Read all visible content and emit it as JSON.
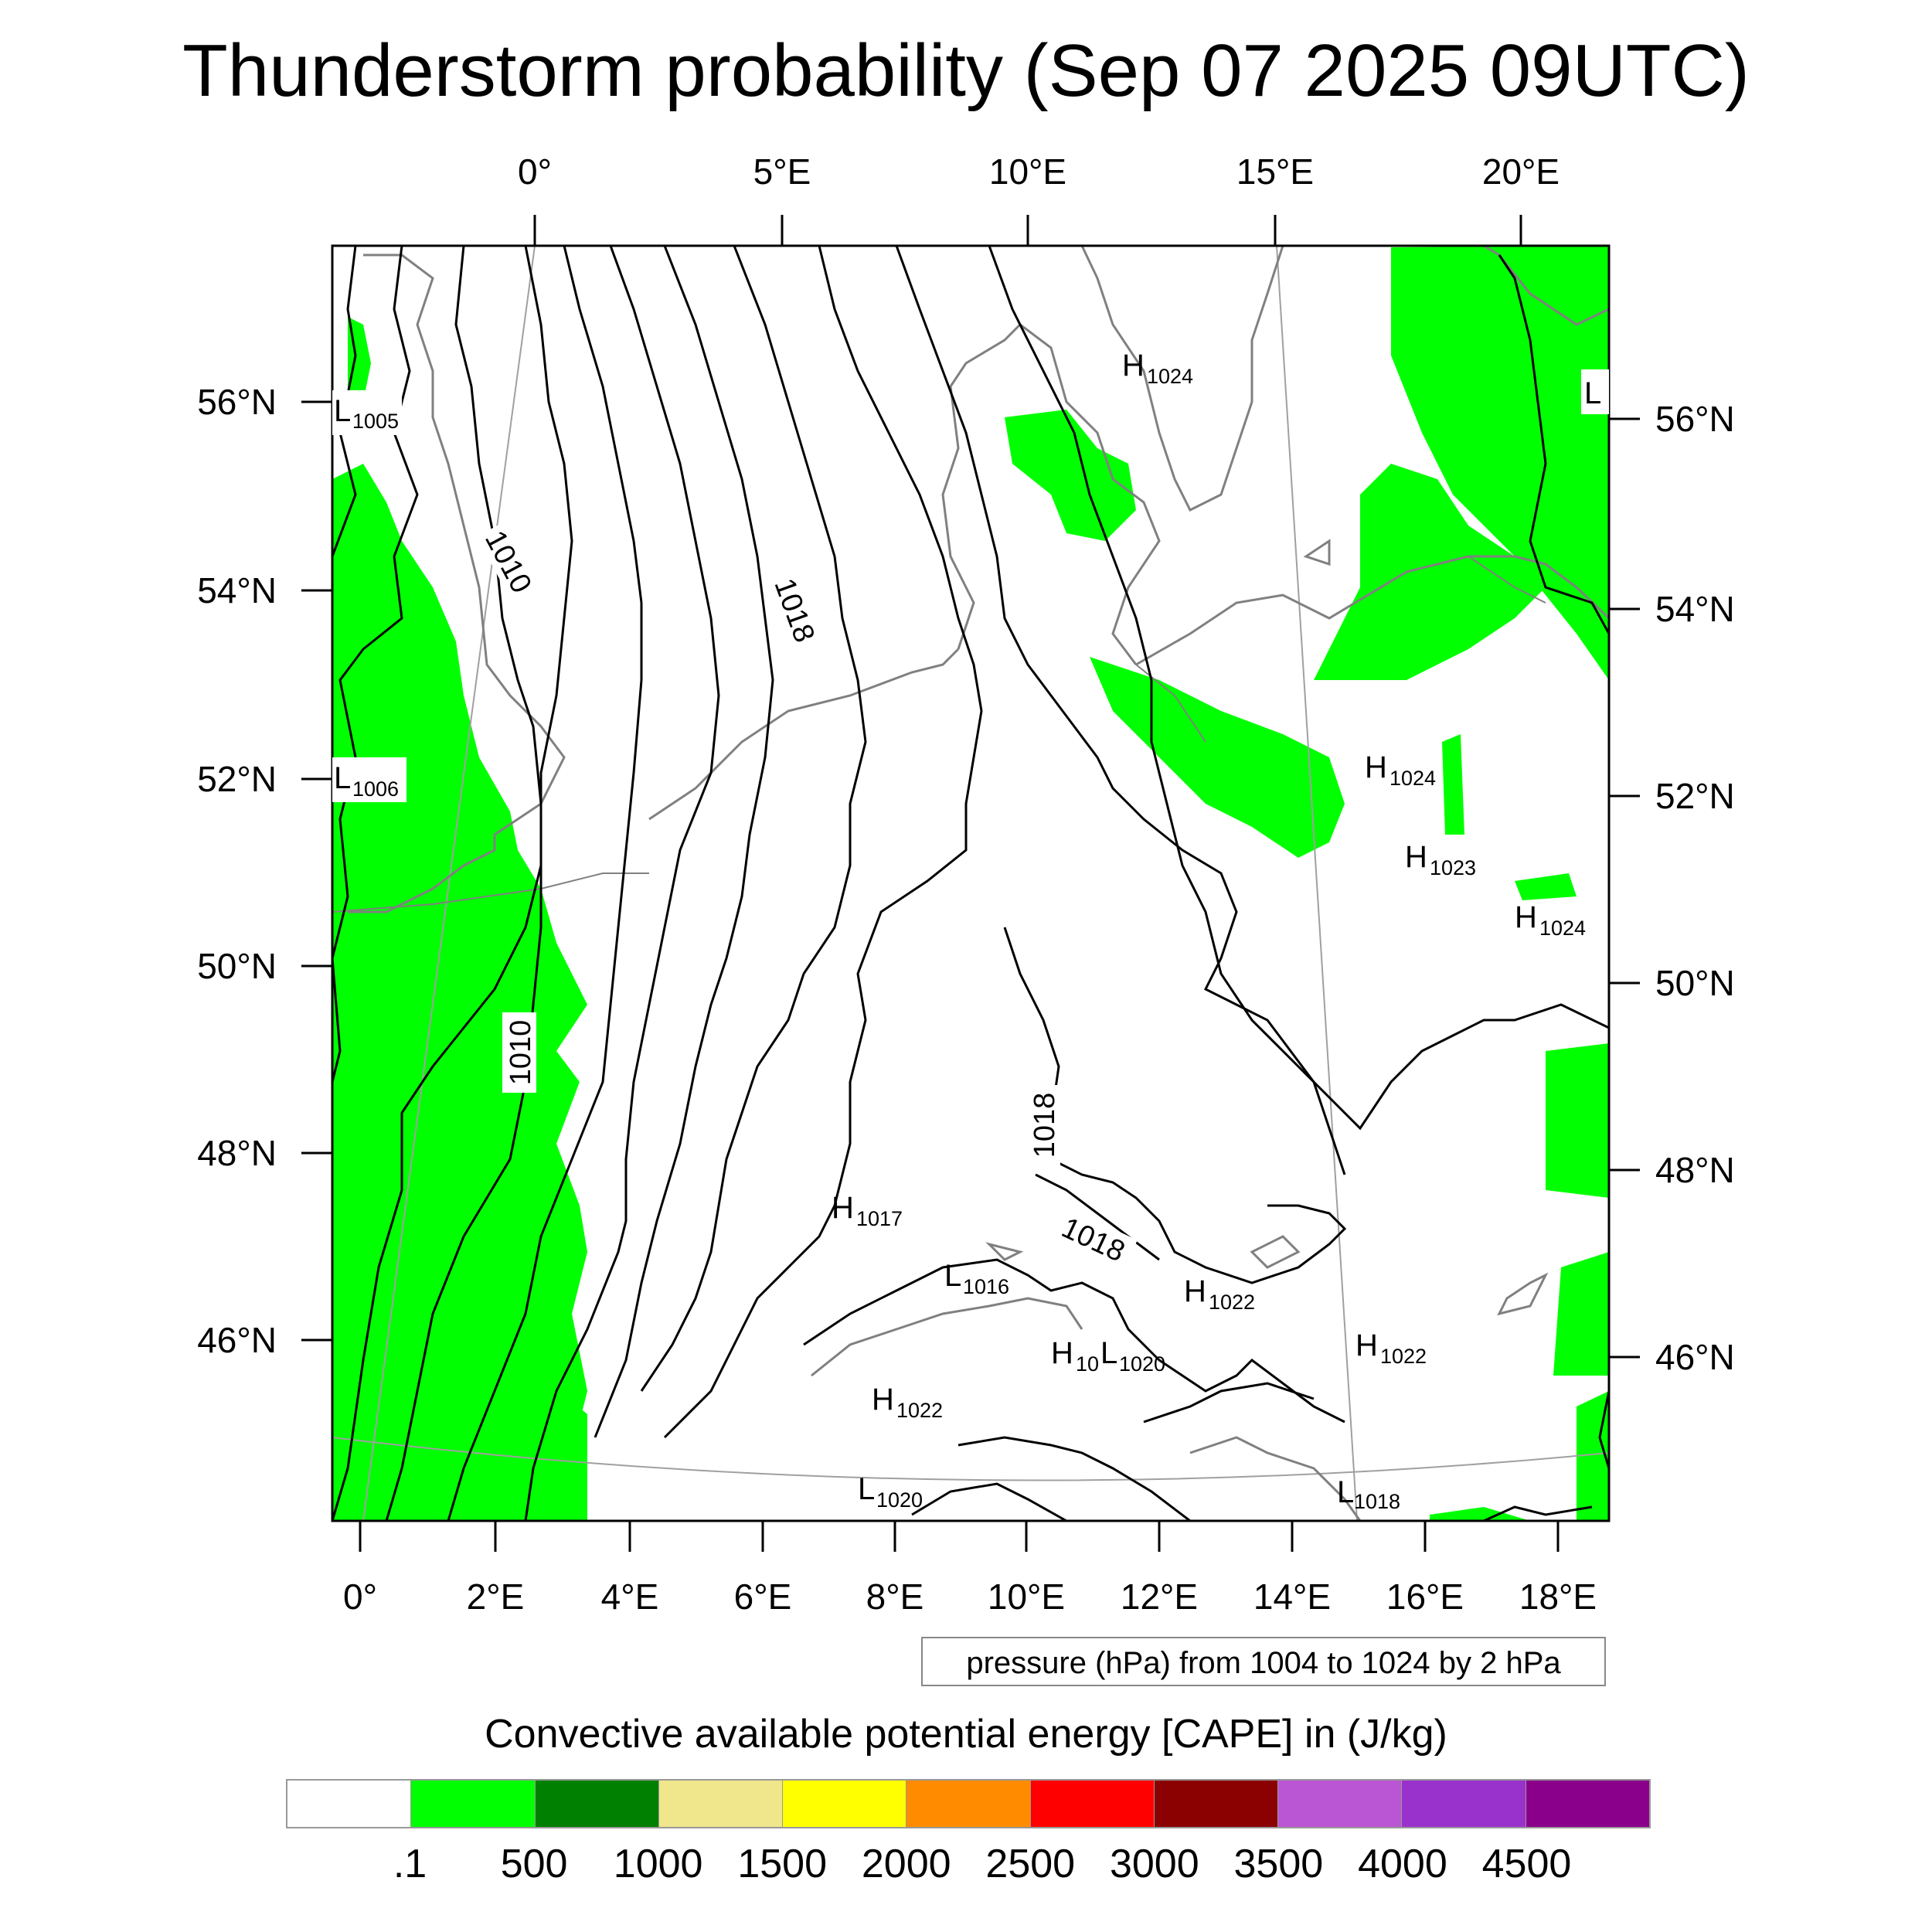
{
  "title": "Thunderstorm probability (Sep 07 2025 09UTC)",
  "top_lon_labels": [
    "0°",
    "5°E",
    "10°E",
    "15°E",
    "20°E"
  ],
  "bottom_lon_labels": [
    "0°",
    "2°E",
    "4°E",
    "6°E",
    "8°E",
    "10°E",
    "12°E",
    "14°E",
    "16°E",
    "18°E"
  ],
  "left_lat_labels": [
    "56°N",
    "54°N",
    "52°N",
    "50°N",
    "48°N",
    "46°N"
  ],
  "right_lat_labels": [
    "56°N",
    "54°N",
    "52°N",
    "50°N",
    "48°N",
    "46°N"
  ],
  "isobar_labels": [
    "1010",
    "1010",
    "1018",
    "1018",
    "1018"
  ],
  "pressure_centers": [
    {
      "type": "L",
      "value": "1005"
    },
    {
      "type": "L",
      "value": "1006"
    },
    {
      "type": "H",
      "value": "1024"
    },
    {
      "type": "L",
      "value": ""
    },
    {
      "type": "H",
      "value": "1024"
    },
    {
      "type": "H",
      "value": "1023"
    },
    {
      "type": "H",
      "value": "1024"
    },
    {
      "type": "H",
      "value": "1017"
    },
    {
      "type": "L",
      "value": "1016"
    },
    {
      "type": "H",
      "value": "1022"
    },
    {
      "type": "H",
      "value": "1022"
    },
    {
      "type": "H",
      "value": "10"
    },
    {
      "type": "L",
      "value": "1020"
    },
    {
      "type": "H",
      "value": "1022"
    },
    {
      "type": "L",
      "value": "1020"
    },
    {
      "type": "L",
      "value": "1018"
    }
  ],
  "pressure_note": "pressure (hPa) from 1004 to 1024 by 2 hPa",
  "legend": {
    "title": "Convective available potential energy [CAPE] in (J/kg)",
    "colors": [
      "#ffffff",
      "#00ff00",
      "#008000",
      "#f0e68c",
      "#ffff00",
      "#ff8c00",
      "#ff0000",
      "#8b0000",
      "#ba55d3",
      "#9932cc",
      "#8b008b"
    ],
    "labels": [
      ".1",
      "500",
      "1000",
      "1500",
      "2000",
      "2500",
      "3000",
      "3500",
      "4000",
      "4500"
    ]
  },
  "colors": {
    "cape_fill": "#00ff00",
    "isobar": "#000000",
    "coastline": "#808080",
    "graticule": "#a0a0a0"
  }
}
